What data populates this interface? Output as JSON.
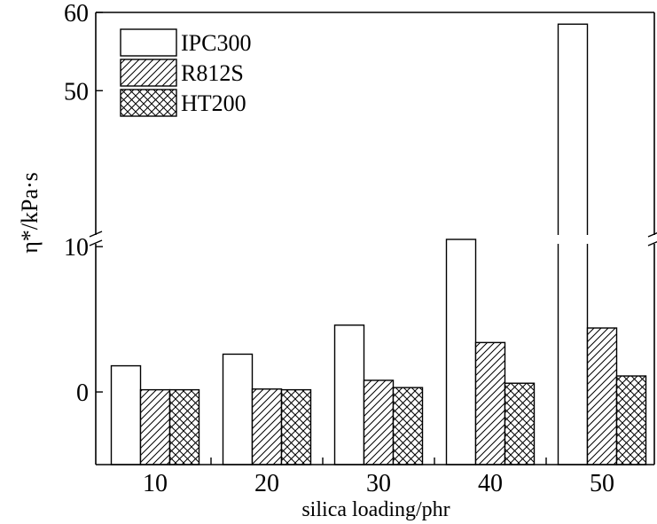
{
  "chart_data": {
    "type": "bar",
    "xlabel": "silica loading/phr",
    "ylabel": "η*/kPa·s",
    "categories": [
      "10",
      "20",
      "30",
      "40",
      "50"
    ],
    "series": [
      {
        "name": "IPC300",
        "values": [
          1.8,
          2.6,
          4.6,
          10.5,
          58.5
        ],
        "pattern": "none"
      },
      {
        "name": "R812S",
        "values": [
          0.15,
          0.2,
          0.8,
          3.4,
          4.4
        ],
        "pattern": "hatch"
      },
      {
        "name": "HT200",
        "values": [
          0.15,
          0.15,
          0.3,
          0.6,
          1.1
        ],
        "pattern": "crosshatch"
      }
    ],
    "y_axis": {
      "broken": true,
      "lower_segment": [
        -5,
        10.5
      ],
      "upper_segment": [
        31,
        60
      ],
      "ticks": [
        0,
        10,
        50,
        60
      ],
      "tick_labels": [
        "0",
        "10",
        "50",
        "60"
      ]
    },
    "legend_position": "top-left",
    "grid": false
  }
}
